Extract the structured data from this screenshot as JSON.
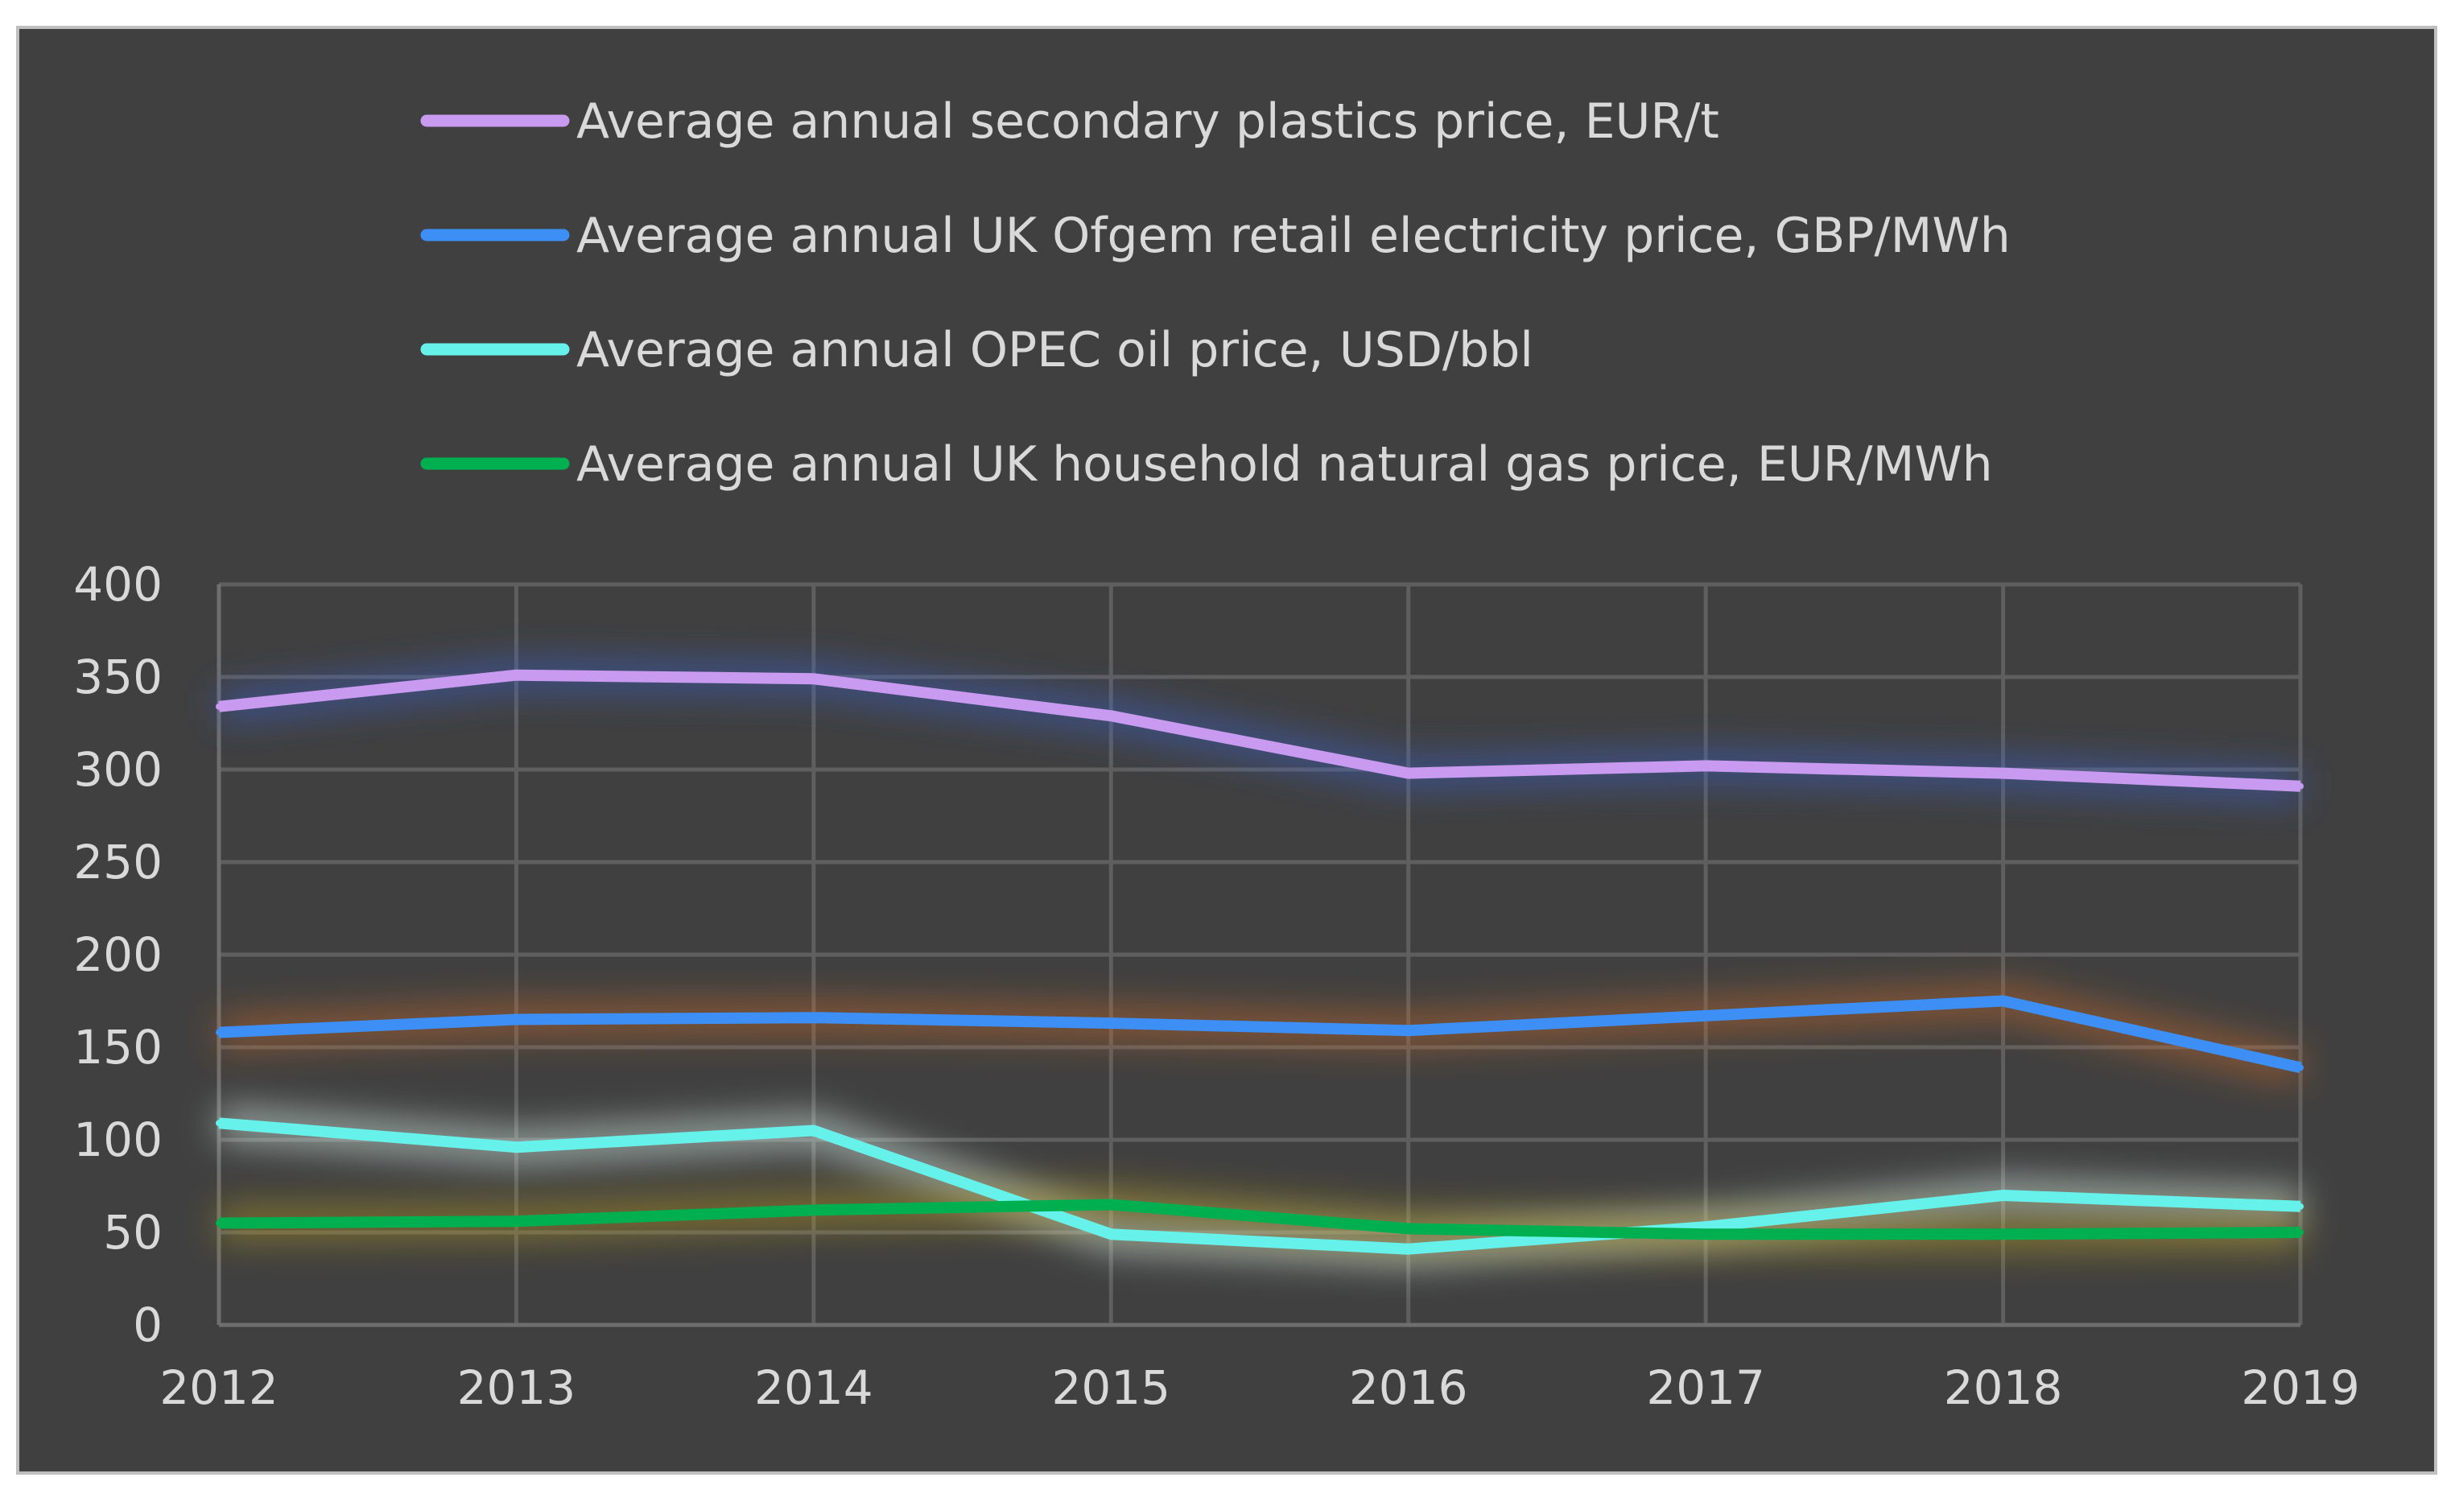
{
  "chart_data": {
    "type": "line",
    "title": "",
    "xlabel": "",
    "ylabel": "",
    "x": [
      "2012",
      "2013",
      "2014",
      "2015",
      "2016",
      "2017",
      "2018",
      "2019"
    ],
    "y_ticks": [
      "0",
      "50",
      "100",
      "150",
      "200",
      "250",
      "300",
      "350",
      "400"
    ],
    "ylim": [
      0,
      400
    ],
    "grid": true,
    "legend_position": "top",
    "series": [
      {
        "name": "Average annual secondary plastics price, EUR/t",
        "color": "#c89af0",
        "glow": "#3a5fc8",
        "values": [
          334,
          351,
          349,
          329,
          298,
          302,
          298,
          291
        ]
      },
      {
        "name": "Average annual UK Ofgem retail electricity price, GBP/MWh",
        "color": "#3d8ef5",
        "glow": "#c86a28",
        "values": [
          158,
          165,
          166,
          163,
          159,
          167,
          175,
          139
        ]
      },
      {
        "name": "Average annual OPEC oil price, USD/bbl",
        "color": "#66f2ea",
        "glow": "#e6fff8",
        "values": [
          109,
          96,
          105,
          49,
          41,
          53,
          70,
          64
        ]
      },
      {
        "name": "Average annual UK household natural gas price, EUR/MWh",
        "color": "#00b050",
        "glow": "#b59a1e",
        "values": [
          55,
          56,
          62,
          65,
          52,
          49,
          49,
          50
        ]
      }
    ]
  }
}
